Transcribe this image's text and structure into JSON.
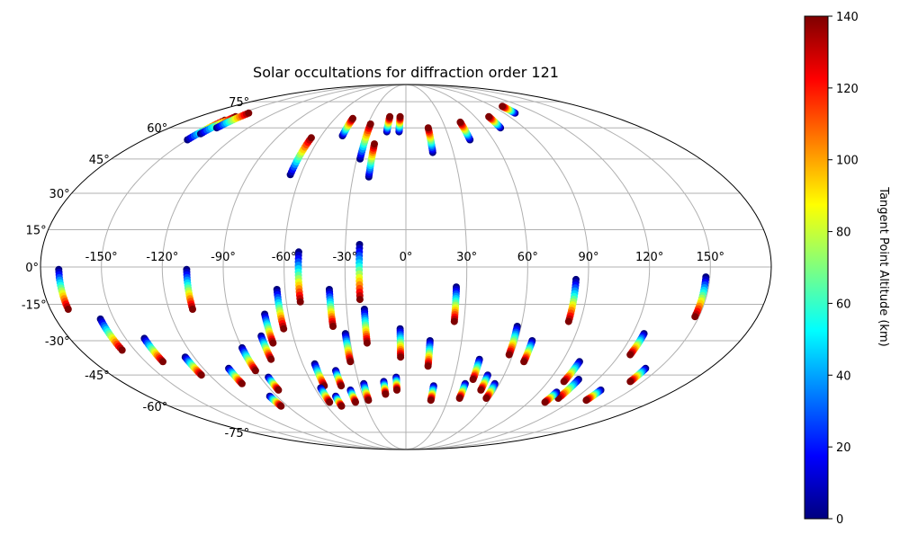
{
  "chart_data": {
    "type": "scatter",
    "projection": "mollweide",
    "title": "Solar occultations for diffraction order 121",
    "lon_ticks": [
      "-150°",
      "-120°",
      "-90°",
      "-60°",
      "-30°",
      "0°",
      "30°",
      "60°",
      "90°",
      "120°",
      "150°"
    ],
    "lon_tick_values": [
      -150,
      -120,
      -90,
      -60,
      -30,
      0,
      30,
      60,
      90,
      120,
      150
    ],
    "lat_ticks": [
      "75°",
      "60°",
      "45°",
      "30°",
      "15°",
      "0°",
      "-15°",
      "-30°",
      "-45°",
      "-60°",
      "-75°"
    ],
    "lat_tick_values": [
      75,
      60,
      45,
      30,
      15,
      0,
      -15,
      -30,
      -45,
      -60,
      -75
    ],
    "xlabel": "",
    "ylabel": "",
    "grid": true,
    "colorbar": {
      "label": "Tangent Point Altitude (km)",
      "range": [
        0,
        140
      ],
      "ticks": [
        "0",
        "20",
        "40",
        "60",
        "80",
        "100",
        "120",
        "140"
      ],
      "tick_values": [
        0,
        20,
        40,
        60,
        80,
        100,
        120,
        140
      ],
      "colormap": "jet",
      "stops": [
        "#00007f",
        "#0000ff",
        "#007fff",
        "#00ffff",
        "#7fff7f",
        "#ffff00",
        "#ff7f00",
        "#ff0000",
        "#7f0000"
      ]
    },
    "tracks_south": [
      {
        "lon": -171,
        "lat": [
          -1,
          -17
        ]
      },
      {
        "lon": -157,
        "lat": [
          -21,
          -34
        ]
      },
      {
        "lon": -140,
        "lat": [
          -29,
          -39
        ]
      },
      {
        "lon": -125,
        "lat": [
          -37,
          -45
        ]
      },
      {
        "lon": -105,
        "lat": [
          -42,
          -49
        ]
      },
      {
        "lon": -95,
        "lat": [
          -55,
          -60
        ]
      },
      {
        "lon": -108,
        "lat": [
          -1,
          -17
        ]
      },
      {
        "lon": -90,
        "lat": [
          -33,
          -43
        ]
      },
      {
        "lon": -85,
        "lat": [
          -46,
          -52
        ]
      },
      {
        "lon": -77,
        "lat": [
          -28,
          -38
        ]
      },
      {
        "lon": -72,
        "lat": [
          -19,
          -31
        ]
      },
      {
        "lon": -64,
        "lat": [
          -9,
          -25
        ]
      },
      {
        "lon": -53,
        "lat": [
          -40,
          -50
        ]
      },
      {
        "lon": -56,
        "lat": [
          -51,
          -58
        ]
      },
      {
        "lon": -49,
        "lat": [
          -55,
          -60
        ]
      },
      {
        "lon": -53,
        "lat": [
          6,
          -14
        ]
      },
      {
        "lon": -38,
        "lat": [
          -9,
          -24
        ]
      },
      {
        "lon": -32,
        "lat": [
          -27,
          -39
        ]
      },
      {
        "lon": -42,
        "lat": [
          -43,
          -50
        ]
      },
      {
        "lon": -37,
        "lat": [
          -52,
          -58
        ]
      },
      {
        "lon": -27,
        "lat": [
          -49,
          -57
        ]
      },
      {
        "lon": -21,
        "lat": [
          -17,
          -31
        ]
      },
      {
        "lon": -23,
        "lat": [
          9,
          -13
        ]
      },
      {
        "lon": -14,
        "lat": [
          -48,
          -54
        ]
      },
      {
        "lon": -6,
        "lat": [
          -46,
          -52
        ]
      },
      {
        "lon": -3,
        "lat": [
          -25,
          -37
        ]
      },
      {
        "lon": 13,
        "lat": [
          -30,
          -41
        ]
      },
      {
        "lon": 25,
        "lat": [
          -8,
          -22
        ]
      },
      {
        "lon": 42,
        "lat": [
          -38,
          -47
        ]
      },
      {
        "lon": 50,
        "lat": [
          -45,
          -52
        ]
      },
      {
        "lon": 38,
        "lat": [
          -49,
          -56
        ]
      },
      {
        "lon": 18,
        "lat": [
          -50,
          -57
        ]
      },
      {
        "lon": 58,
        "lat": [
          -24,
          -36
        ]
      },
      {
        "lon": 68,
        "lat": [
          -30,
          -39
        ]
      },
      {
        "lon": 57,
        "lat": [
          -49,
          -56
        ]
      },
      {
        "lon": 84,
        "lat": [
          -5,
          -22
        ]
      },
      {
        "lon": 100,
        "lat": [
          -39,
          -48
        ]
      },
      {
        "lon": 108,
        "lat": [
          -47,
          -56
        ]
      },
      {
        "lon": 102,
        "lat": [
          -53,
          -58
        ]
      },
      {
        "lon": 126,
        "lat": [
          -27,
          -36
        ]
      },
      {
        "lon": 148,
        "lat": [
          -4,
          -20
        ]
      },
      {
        "lon": 142,
        "lat": [
          -42,
          -48
        ]
      },
      {
        "lon": 130,
        "lat": [
          -52,
          -57
        ]
      }
    ],
    "tracks_north": [
      {
        "lon": -150,
        "lat": [
          54,
          64
        ]
      },
      {
        "lon": -148,
        "lat": [
          57,
          66
        ]
      },
      {
        "lon": -144,
        "lat": [
          60,
          68
        ]
      },
      {
        "lon": -66,
        "lat": [
          38,
          55
        ]
      },
      {
        "lon": -45,
        "lat": [
          56,
          65
        ]
      },
      {
        "lon": -28,
        "lat": [
          45,
          62
        ]
      },
      {
        "lon": -21,
        "lat": [
          37,
          52
        ]
      },
      {
        "lon": -14,
        "lat": [
          58,
          66
        ]
      },
      {
        "lon": -5,
        "lat": [
          58,
          66
        ]
      },
      {
        "lon": 17,
        "lat": [
          48,
          60
        ]
      },
      {
        "lon": 44,
        "lat": [
          54,
          63
        ]
      },
      {
        "lon": 72,
        "lat": [
          60,
          66
        ]
      },
      {
        "lon": 100,
        "lat": [
          68,
          72
        ]
      }
    ]
  }
}
